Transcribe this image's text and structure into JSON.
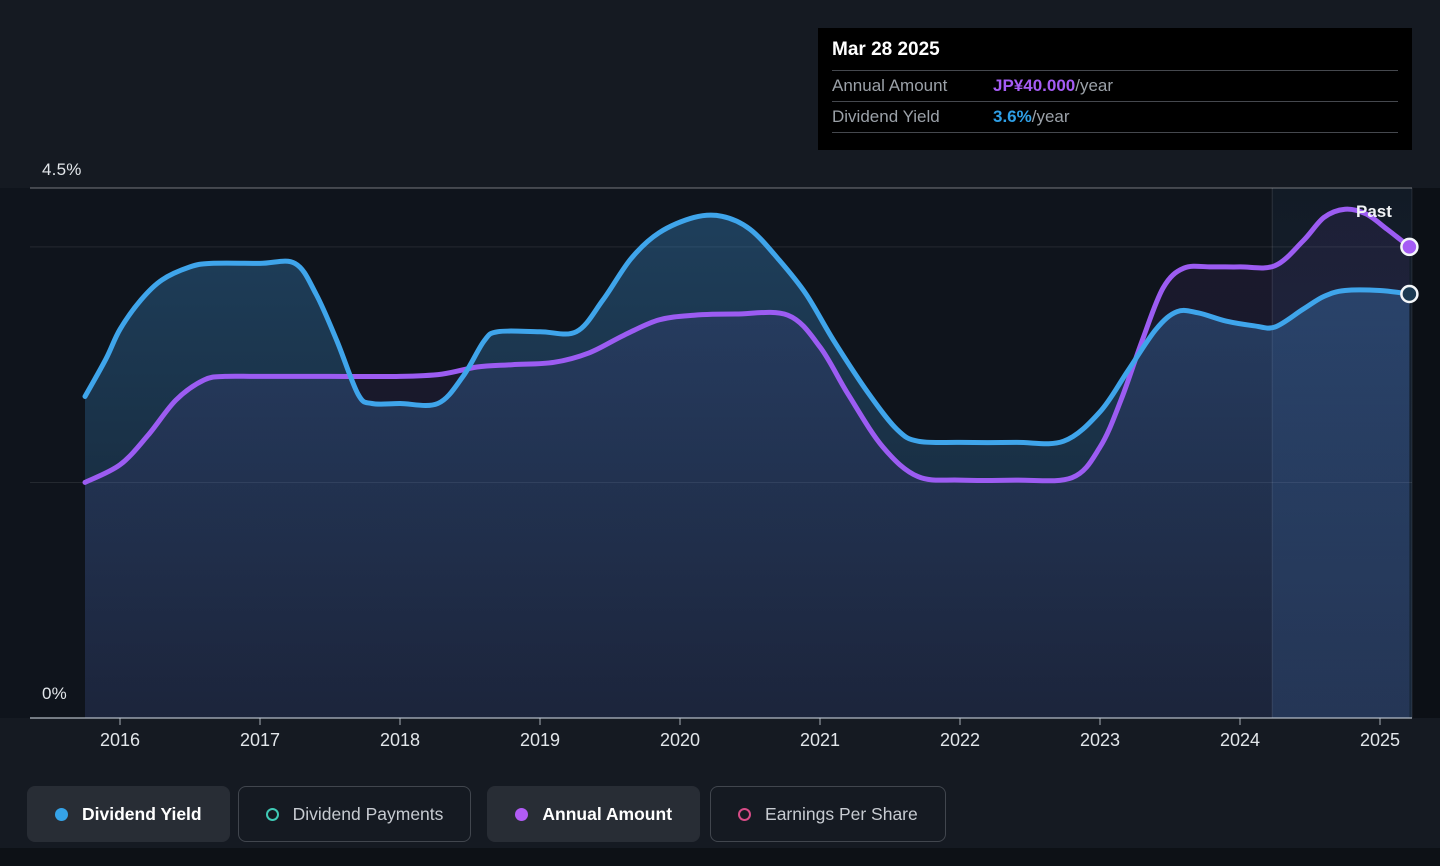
{
  "page": {
    "background": "#151A22",
    "description": "Dividend history chart with tooltip and legend"
  },
  "tooltip": {
    "date": "Mar 28 2025",
    "rows": [
      {
        "label": "Annual Amount",
        "value": "JP¥40.000",
        "suffix": "/year",
        "color": "#A55CF4"
      },
      {
        "label": "Dividend Yield",
        "value": "3.6%",
        "suffix": "/year",
        "color": "#2E9FE6"
      }
    ]
  },
  "chart_data": {
    "type": "line",
    "title": "Dividend yield and annual dividend amount history",
    "past_label": "Past",
    "x_axis": {
      "ticks": [
        2016,
        2017,
        2018,
        2019,
        2020,
        2021,
        2022,
        2023,
        2024,
        2025
      ],
      "range": [
        2015.55,
        2025.23
      ],
      "grid": false
    },
    "y_axis": {
      "top_label": "4.5%",
      "bottom_label": "0%",
      "range_pct": [
        0,
        4.5
      ],
      "gridlines_pct": [
        4.5,
        4.0,
        2.0
      ],
      "unlabeled_gridlines": true
    },
    "highlight_band": {
      "from_year": 2024.23,
      "to_year": 2025.23
    },
    "series": [
      {
        "name": "Dividend Yield",
        "units": "%",
        "color": "#3FA5EB",
        "area_fill": true,
        "points": [
          [
            2015.75,
            2.73
          ],
          [
            2015.9,
            3.05
          ],
          [
            2016.0,
            3.3
          ],
          [
            2016.15,
            3.55
          ],
          [
            2016.3,
            3.72
          ],
          [
            2016.5,
            3.83
          ],
          [
            2016.65,
            3.86
          ],
          [
            2017.0,
            3.86
          ],
          [
            2017.25,
            3.86
          ],
          [
            2017.4,
            3.6
          ],
          [
            2017.55,
            3.2
          ],
          [
            2017.7,
            2.75
          ],
          [
            2017.8,
            2.67
          ],
          [
            2018.0,
            2.67
          ],
          [
            2018.27,
            2.67
          ],
          [
            2018.45,
            2.9
          ],
          [
            2018.6,
            3.2
          ],
          [
            2018.7,
            3.28
          ],
          [
            2019.0,
            3.28
          ],
          [
            2019.26,
            3.28
          ],
          [
            2019.45,
            3.55
          ],
          [
            2019.65,
            3.9
          ],
          [
            2019.85,
            4.12
          ],
          [
            2020.1,
            4.25
          ],
          [
            2020.3,
            4.26
          ],
          [
            2020.5,
            4.15
          ],
          [
            2020.7,
            3.9
          ],
          [
            2020.9,
            3.6
          ],
          [
            2021.1,
            3.2
          ],
          [
            2021.35,
            2.75
          ],
          [
            2021.55,
            2.45
          ],
          [
            2021.7,
            2.35
          ],
          [
            2022.0,
            2.34
          ],
          [
            2022.4,
            2.34
          ],
          [
            2022.74,
            2.35
          ],
          [
            2023.0,
            2.6
          ],
          [
            2023.2,
            2.95
          ],
          [
            2023.4,
            3.3
          ],
          [
            2023.55,
            3.45
          ],
          [
            2023.7,
            3.44
          ],
          [
            2023.9,
            3.37
          ],
          [
            2024.1,
            3.33
          ],
          [
            2024.25,
            3.32
          ],
          [
            2024.45,
            3.47
          ],
          [
            2024.6,
            3.58
          ],
          [
            2024.75,
            3.63
          ],
          [
            2025.0,
            3.63
          ],
          [
            2025.21,
            3.6
          ]
        ]
      },
      {
        "name": "Annual Amount",
        "units": "JP¥/year",
        "color": "#9C5CF2",
        "area_fill": false,
        "yen_per_percent": 10,
        "points": [
          [
            2015.75,
            20
          ],
          [
            2016.0,
            21.5
          ],
          [
            2016.2,
            24
          ],
          [
            2016.4,
            27
          ],
          [
            2016.6,
            28.7
          ],
          [
            2016.75,
            29
          ],
          [
            2017.0,
            29
          ],
          [
            2017.5,
            29
          ],
          [
            2018.0,
            29
          ],
          [
            2018.3,
            29.2
          ],
          [
            2018.55,
            29.8
          ],
          [
            2018.8,
            30
          ],
          [
            2019.1,
            30.2
          ],
          [
            2019.35,
            31
          ],
          [
            2019.6,
            32.5
          ],
          [
            2019.85,
            33.8
          ],
          [
            2020.1,
            34.2
          ],
          [
            2020.4,
            34.3
          ],
          [
            2020.77,
            34.2
          ],
          [
            2021.0,
            31.5
          ],
          [
            2021.2,
            27.5
          ],
          [
            2021.45,
            23
          ],
          [
            2021.7,
            20.5
          ],
          [
            2022.0,
            20.2
          ],
          [
            2022.4,
            20.2
          ],
          [
            2022.8,
            20.4
          ],
          [
            2023.0,
            23
          ],
          [
            2023.15,
            27
          ],
          [
            2023.3,
            32
          ],
          [
            2023.45,
            36.5
          ],
          [
            2023.6,
            38.2
          ],
          [
            2023.8,
            38.3
          ],
          [
            2024.0,
            38.3
          ],
          [
            2024.25,
            38.4
          ],
          [
            2024.45,
            40.5
          ],
          [
            2024.6,
            42.5
          ],
          [
            2024.75,
            43.2
          ],
          [
            2024.9,
            42.8
          ],
          [
            2025.05,
            41.5
          ],
          [
            2025.21,
            40
          ]
        ]
      }
    ],
    "end_markers": [
      {
        "series": "Annual Amount",
        "year": 2025.21,
        "value": 40,
        "fill": "#A55CF4",
        "ring": "#F4F6F8"
      },
      {
        "series": "Dividend Yield",
        "year": 2025.21,
        "value_pct": 3.6,
        "fill": "#1C3A52",
        "ring": "#F4F6F8"
      }
    ]
  },
  "legend": {
    "items": [
      {
        "label": "Dividend Yield",
        "marker": "filled",
        "color": "#35A3E8",
        "active": true
      },
      {
        "label": "Dividend Payments",
        "marker": "open",
        "color": "#3FC9B5",
        "active": false
      },
      {
        "label": "Annual Amount",
        "marker": "filled",
        "color": "#B15CF5",
        "active": true
      },
      {
        "label": "Earnings Per Share",
        "marker": "open",
        "color": "#D64B86",
        "active": false
      }
    ]
  },
  "colors": {
    "background": "#151A22",
    "plot_background": "#0F141C",
    "grid_strong": "rgba(255,255,255,0.28)",
    "grid_faint": "rgba(255,255,255,0.09)",
    "axis_line": "rgba(200,208,216,0.55)",
    "band_tint": "80,150,225",
    "blue_fill": "62,150,220",
    "purple_fill": "155,87,242"
  }
}
